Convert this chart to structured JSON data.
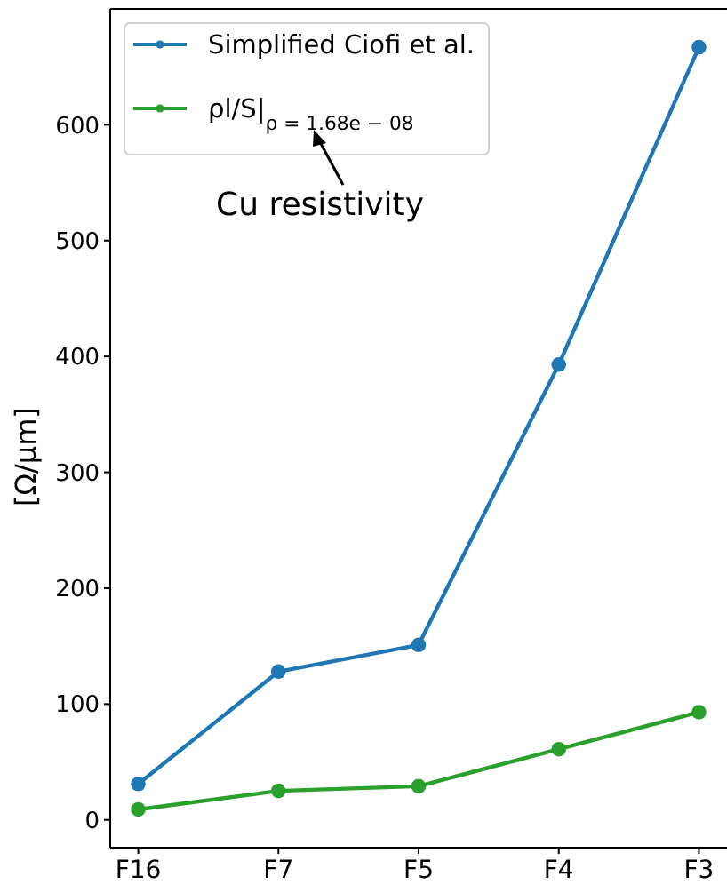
{
  "chart_data": {
    "type": "line",
    "categories": [
      "F16",
      "F7",
      "F5",
      "F4",
      "F3"
    ],
    "series": [
      {
        "name": "Simplified Ciofi et al.",
        "color": "#1f77b4",
        "values": [
          31,
          128,
          151,
          393,
          667
        ]
      },
      {
        "name": "ρl/S|$_{ρ = 1.68e − 08}$",
        "color": "#2ca02c",
        "values": [
          9,
          25,
          29,
          61,
          93
        ]
      }
    ],
    "ylabel": "[Ω/μm]",
    "ylim": [
      -24,
      700
    ],
    "yticks": [
      0,
      100,
      200,
      300,
      400,
      500,
      600
    ],
    "marker": "circle",
    "legend": "top left",
    "annotations": [
      "Cu resistivity"
    ]
  }
}
